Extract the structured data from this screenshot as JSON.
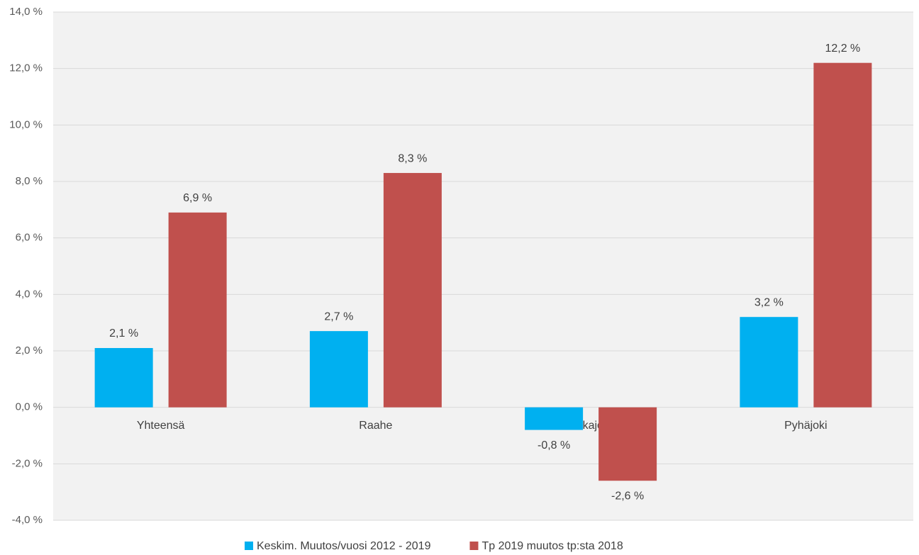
{
  "chart_data": {
    "type": "bar",
    "categories": [
      "Yhteensä",
      "Raahe",
      "Siikajoki",
      "Pyhäjoki"
    ],
    "series": [
      {
        "name": "Keskim. Muutos/vuosi 2012 - 2019",
        "color": "#00b0f0",
        "values": [
          2.1,
          2.7,
          -0.8,
          3.2
        ],
        "value_labels": [
          "2,1 %",
          "2,7 %",
          "-0,8 %",
          "3,2 %"
        ]
      },
      {
        "name": "Tp 2019 muutos tp:sta 2018",
        "color": "#c0504d",
        "values": [
          6.9,
          8.3,
          -2.6,
          12.2
        ],
        "value_labels": [
          "6,9 %",
          "8,3 %",
          "-2,6 %",
          "12,2 %"
        ]
      }
    ],
    "ylim": [
      -4,
      14
    ],
    "yticks": [
      {
        "value": -4,
        "label": "-4,0 %"
      },
      {
        "value": -2,
        "label": "-2,0 %"
      },
      {
        "value": 0,
        "label": "0,0 %"
      },
      {
        "value": 2,
        "label": "2,0 %"
      },
      {
        "value": 4,
        "label": "4,0 %"
      },
      {
        "value": 6,
        "label": "6,0 %"
      },
      {
        "value": 8,
        "label": "8,0 %"
      },
      {
        "value": 10,
        "label": "10,0 %"
      },
      {
        "value": 12,
        "label": "12,0 %"
      },
      {
        "value": 14,
        "label": "14,0 %"
      }
    ],
    "grid": true,
    "legend": "bottom"
  }
}
